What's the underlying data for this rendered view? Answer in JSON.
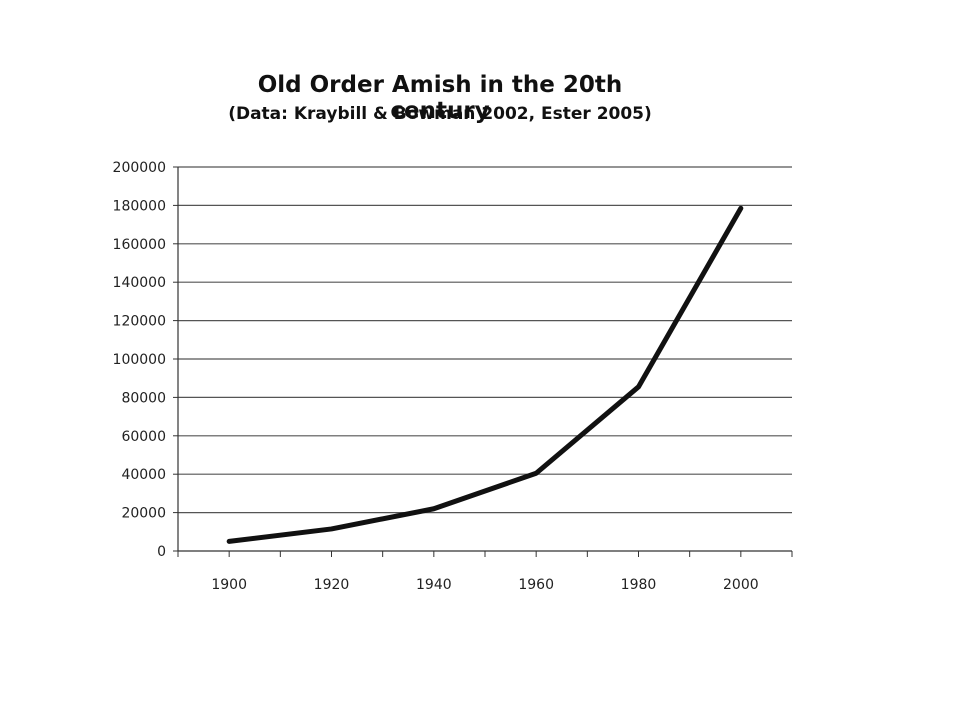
{
  "chart_data": {
    "type": "line",
    "title": "Old Order Amish in the 20th century",
    "subtitle": "(Data: Kraybill & Bowman 2002, Ester 2005)",
    "xlabel": "",
    "ylabel": "",
    "x": [
      1900,
      1920,
      1940,
      1960,
      1980,
      2000
    ],
    "series": [
      {
        "values": [
          5000,
          11500,
          22000,
          40500,
          85500,
          178500
        ]
      }
    ],
    "x_tick_labels": [
      "1900",
      "1920",
      "1940",
      "1960",
      "1980",
      "2000"
    ],
    "y_tick_labels": [
      "0",
      "20000",
      "40000",
      "60000",
      "80000",
      "100000",
      "120000",
      "140000",
      "160000",
      "180000",
      "200000"
    ],
    "xlim": [
      1890,
      2010
    ],
    "ylim": [
      0,
      200000
    ],
    "grid": "horizontal",
    "legend": "none",
    "colors": {
      "line": "#111111",
      "grid": "#555555",
      "axis": "#333333"
    }
  }
}
